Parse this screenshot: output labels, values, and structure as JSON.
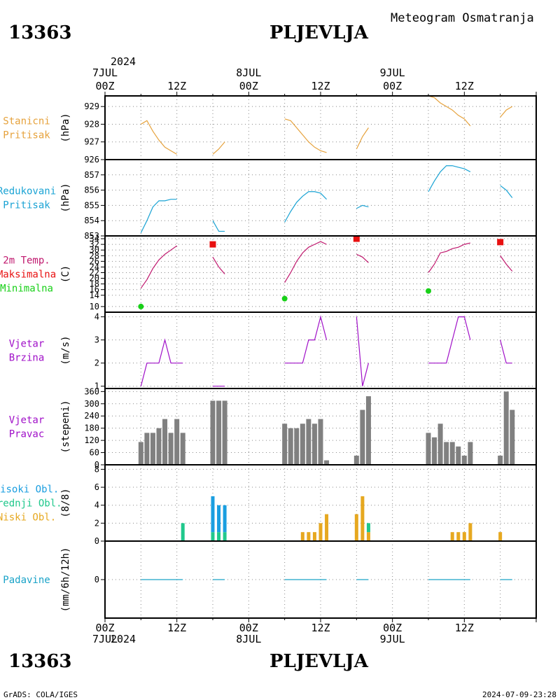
{
  "header": {
    "station_id": "13363",
    "station_name": "PLJEVLJA",
    "subtitle": "Meteogram Osmatranja"
  },
  "footer": {
    "station_id": "13363",
    "station_name": "PLJEVLJA",
    "credit": "GrADS: COLA/IGES",
    "timestamp": "2024-07-09-23:28"
  },
  "time_axis": {
    "year": "2024",
    "day_labels": [
      "7JUL",
      "8JUL",
      "9JUL"
    ],
    "hour_labels": [
      "00Z",
      "12Z",
      "00Z",
      "12Z",
      "00Z",
      "12Z"
    ],
    "hour_label_values": [
      0,
      12,
      24,
      36,
      48,
      60
    ],
    "range": [
      0,
      72
    ]
  },
  "colors": {
    "station_pressure": "#e6a23c",
    "reduced_pressure": "#1aa3d4",
    "temperature": "#c0186e",
    "maximum": "#e81010",
    "minimum": "#18d018",
    "wind_speed": "#a010c8",
    "wind_direction": "#808080",
    "high_clouds": "#1a9ee0",
    "middle_clouds": "#20c88c",
    "low_clouds": "#e6a820",
    "precipitation": "#1aa3c8",
    "wind_dir_baseline": "#e05050"
  },
  "chart_data": [
    {
      "type": "line",
      "labels": [
        "Stanicni",
        "Pritisak"
      ],
      "unit": "(hPa)",
      "ylim": [
        926,
        929.6
      ],
      "yticks": [
        926,
        927,
        928,
        929
      ],
      "series": [
        {
          "values": [
            [
              6,
              928.0
            ],
            [
              7,
              928.2
            ],
            [
              8,
              927.6
            ],
            [
              9,
              927.1
            ],
            [
              10,
              926.7
            ],
            [
              11,
              926.5
            ],
            [
              12,
              926.3
            ]
          ]
        },
        {
          "values": [
            [
              18,
              926.3
            ],
            [
              19,
              926.6
            ],
            [
              20,
              927.0
            ]
          ]
        },
        {
          "values": [
            [
              30,
              928.3
            ],
            [
              31,
              928.2
            ],
            [
              32,
              927.8
            ],
            [
              33,
              927.4
            ],
            [
              34,
              927.0
            ],
            [
              35,
              926.7
            ],
            [
              36,
              926.5
            ],
            [
              37,
              926.4
            ]
          ]
        },
        {
          "values": [
            [
              42,
              926.6
            ],
            [
              43,
              927.3
            ],
            [
              44,
              927.8
            ]
          ]
        },
        {
          "values": [
            [
              54,
              929.6
            ],
            [
              55,
              929.5
            ],
            [
              56,
              929.2
            ],
            [
              57,
              929.0
            ],
            [
              58,
              928.8
            ],
            [
              59,
              928.5
            ],
            [
              60,
              928.3
            ],
            [
              61,
              927.9
            ]
          ]
        },
        {
          "values": [
            [
              66,
              928.4
            ],
            [
              67,
              928.8
            ],
            [
              68,
              929.0
            ]
          ]
        }
      ]
    },
    {
      "type": "line",
      "labels": [
        "Redukovani",
        "Pritisak"
      ],
      "unit": "(hPa)",
      "ylim": [
        853,
        858
      ],
      "yticks": [
        853,
        854,
        855,
        856,
        857
      ],
      "series": [
        {
          "values": [
            [
              6,
              853.2
            ],
            [
              7,
              854.0
            ],
            [
              8,
              854.9
            ],
            [
              9,
              855.3
            ],
            [
              10,
              855.3
            ],
            [
              11,
              855.4
            ],
            [
              12,
              855.4
            ]
          ]
        },
        {
          "values": [
            [
              18,
              854.0
            ],
            [
              19,
              853.3
            ],
            [
              20,
              853.3
            ]
          ]
        },
        {
          "values": [
            [
              30,
              853.9
            ],
            [
              31,
              854.6
            ],
            [
              32,
              855.2
            ],
            [
              33,
              855.6
            ],
            [
              34,
              855.9
            ],
            [
              35,
              855.9
            ],
            [
              36,
              855.8
            ],
            [
              37,
              855.4
            ]
          ]
        },
        {
          "values": [
            [
              42,
              854.8
            ],
            [
              43,
              855.0
            ],
            [
              44,
              854.9
            ]
          ]
        },
        {
          "values": [
            [
              54,
              855.9
            ],
            [
              55,
              856.6
            ],
            [
              56,
              857.2
            ],
            [
              57,
              857.6
            ],
            [
              58,
              857.6
            ],
            [
              59,
              857.5
            ],
            [
              60,
              857.4
            ],
            [
              61,
              857.2
            ]
          ]
        },
        {
          "values": [
            [
              66,
              856.3
            ],
            [
              67,
              856.0
            ],
            [
              68,
              855.5
            ]
          ]
        }
      ]
    },
    {
      "type": "line",
      "labels": [
        "2m Temp.",
        "Maksimalna",
        "Minimalna"
      ],
      "unit": "(C)",
      "ylim": [
        8,
        35
      ],
      "yticks": [
        10,
        14,
        16,
        18,
        20,
        22,
        24,
        26,
        28,
        30,
        32,
        34
      ],
      "series": [
        {
          "values": [
            [
              6,
              16.5
            ],
            [
              7,
              19.5
            ],
            [
              8,
              23.5
            ],
            [
              9,
              26.5
            ],
            [
              10,
              28.5
            ],
            [
              11,
              30.0
            ],
            [
              12,
              31.5
            ]
          ]
        },
        {
          "values": [
            [
              18,
              27.5
            ],
            [
              19,
              24.0
            ],
            [
              20,
              21.5
            ]
          ]
        },
        {
          "values": [
            [
              30,
              18.5
            ],
            [
              31,
              22.0
            ],
            [
              32,
              26.0
            ],
            [
              33,
              29.0
            ],
            [
              34,
              31.0
            ],
            [
              35,
              32.0
            ],
            [
              36,
              33.0
            ],
            [
              37,
              32.0
            ]
          ]
        },
        {
          "values": [
            [
              42,
              28.5
            ],
            [
              43,
              27.5
            ],
            [
              44,
              25.5
            ]
          ]
        },
        {
          "values": [
            [
              54,
              22.0
            ],
            [
              55,
              25.0
            ],
            [
              56,
              29.0
            ],
            [
              57,
              29.5
            ],
            [
              58,
              30.5
            ],
            [
              59,
              31.0
            ],
            [
              60,
              32.0
            ],
            [
              61,
              32.5
            ]
          ]
        },
        {
          "values": [
            [
              66,
              28.0
            ],
            [
              67,
              25.0
            ],
            [
              68,
              22.5
            ]
          ]
        }
      ],
      "maximum": [
        [
          18,
          32.0
        ],
        [
          42,
          34.0
        ],
        [
          66,
          32.8
        ]
      ],
      "minimum": [
        [
          6,
          10.0
        ],
        [
          30,
          12.8
        ],
        [
          54,
          15.5
        ]
      ]
    },
    {
      "type": "line",
      "labels": [
        "Vjetar",
        "Brzina"
      ],
      "unit": "(m/s)",
      "ylim": [
        0.9,
        4.2
      ],
      "yticks": [
        1,
        2,
        3,
        4
      ],
      "series": [
        {
          "values": [
            [
              6,
              1
            ],
            [
              7,
              2
            ],
            [
              8,
              2
            ],
            [
              9,
              2
            ],
            [
              10,
              3
            ],
            [
              11,
              2
            ],
            [
              12,
              2
            ],
            [
              13,
              2
            ]
          ]
        },
        {
          "values": [
            [
              18,
              1
            ],
            [
              19,
              1
            ],
            [
              20,
              1
            ]
          ]
        },
        {
          "values": [
            [
              30,
              2
            ],
            [
              31,
              2
            ],
            [
              32,
              2
            ],
            [
              33,
              2
            ],
            [
              34,
              3
            ],
            [
              35,
              3
            ],
            [
              36,
              4
            ],
            [
              37,
              3
            ]
          ]
        },
        {
          "values": [
            [
              42,
              4
            ],
            [
              43,
              1
            ],
            [
              44,
              2
            ]
          ]
        },
        {
          "values": [
            [
              54,
              2
            ],
            [
              55,
              2
            ],
            [
              56,
              2
            ],
            [
              57,
              2
            ],
            [
              58,
              3
            ],
            [
              59,
              4
            ],
            [
              60,
              4
            ],
            [
              61,
              3
            ]
          ]
        },
        {
          "values": [
            [
              66,
              3
            ],
            [
              67,
              2
            ],
            [
              68,
              2
            ]
          ]
        }
      ]
    },
    {
      "type": "bar",
      "labels": [
        "Vjetar",
        "Pravac"
      ],
      "unit": "(stepeni)",
      "ylim": [
        0,
        375
      ],
      "yticks": [
        0,
        60,
        120,
        180,
        240,
        300,
        360
      ],
      "x": [
        6,
        7,
        8,
        9,
        10,
        11,
        12,
        13,
        18,
        19,
        20,
        30,
        31,
        32,
        33,
        34,
        35,
        36,
        37,
        42,
        43,
        44,
        54,
        55,
        56,
        57,
        58,
        59,
        60,
        61,
        66,
        67,
        68
      ],
      "values": [
        112,
        157,
        157,
        180,
        225,
        157,
        225,
        157,
        315,
        315,
        315,
        202,
        180,
        180,
        202,
        225,
        202,
        225,
        22,
        45,
        270,
        337,
        157,
        135,
        202,
        112,
        112,
        90,
        45,
        112,
        45,
        360,
        270
      ]
    },
    {
      "type": "bar",
      "labels": [
        "Visoki Obl.",
        "Srednji Obl.",
        "Niski Obl."
      ],
      "unit": "(8/8)",
      "ylim": [
        0,
        8.5
      ],
      "yticks": [
        0,
        2,
        4,
        6,
        8
      ],
      "x": [
        6,
        7,
        8,
        9,
        10,
        11,
        12,
        13,
        18,
        19,
        20,
        30,
        31,
        32,
        33,
        34,
        35,
        36,
        37,
        42,
        43,
        44,
        54,
        55,
        56,
        57,
        58,
        59,
        60,
        61,
        66,
        67,
        68
      ],
      "series": [
        {
          "name": "Niski Obl.",
          "values": [
            0,
            0,
            0,
            0,
            0,
            0,
            0,
            0,
            0,
            0,
            0,
            0,
            0,
            0,
            1,
            1,
            1,
            2,
            3,
            3,
            5,
            1,
            0,
            0,
            0,
            0,
            1,
            1,
            1,
            2,
            1,
            0,
            0
          ]
        },
        {
          "name": "Srednji Obl.",
          "values": [
            0,
            0,
            0,
            0,
            0,
            0,
            0,
            2,
            1,
            1,
            1,
            0,
            0,
            0,
            0,
            0,
            0,
            0,
            0,
            0,
            0,
            1,
            0,
            0,
            0,
            0,
            0,
            0,
            0,
            0,
            0,
            0,
            0
          ]
        },
        {
          "name": "Visoki Obl.",
          "values": [
            0,
            0,
            0,
            0,
            0,
            0,
            0,
            0,
            4,
            3,
            3,
            0,
            0,
            0,
            0,
            0,
            0,
            0,
            0,
            0,
            0,
            0,
            0,
            0,
            0,
            0,
            0,
            0,
            0,
            0,
            0,
            0,
            0
          ]
        }
      ]
    },
    {
      "type": "line",
      "labels": [
        "Padavine"
      ],
      "unit": "(mm/6h/12h)",
      "ylim": [
        -1,
        1
      ],
      "yticks": [
        0
      ],
      "series": [
        {
          "values": [
            [
              6,
              0
            ],
            [
              13,
              0
            ]
          ]
        },
        {
          "values": [
            [
              18,
              0
            ],
            [
              20,
              0
            ]
          ]
        },
        {
          "values": [
            [
              30,
              0
            ],
            [
              37,
              0
            ]
          ]
        },
        {
          "values": [
            [
              42,
              0
            ],
            [
              44,
              0
            ]
          ]
        },
        {
          "values": [
            [
              54,
              0
            ],
            [
              61,
              0
            ]
          ]
        },
        {
          "values": [
            [
              66,
              0
            ],
            [
              68,
              0
            ]
          ]
        }
      ]
    }
  ]
}
